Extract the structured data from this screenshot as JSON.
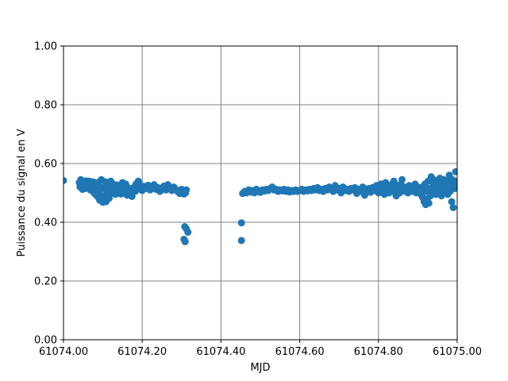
{
  "chart_data": {
    "type": "scatter",
    "title": "",
    "xlabel": "MJD",
    "ylabel": "Puissance du signal en V",
    "xlim": [
      61074.0,
      61075.0
    ],
    "ylim": [
      0.0,
      1.0
    ],
    "x_ticks": [
      61074.0,
      61074.2,
      61074.4,
      61074.6,
      61074.8,
      61075.0
    ],
    "x_tick_labels": [
      "61074.00",
      "61074.20",
      "61074.40",
      "61074.60",
      "61074.80",
      "61075.00"
    ],
    "y_ticks": [
      0.0,
      0.2,
      0.4,
      0.6,
      0.8,
      1.0
    ],
    "y_tick_labels": [
      "0.00",
      "0.20",
      "0.40",
      "0.60",
      "0.80",
      "1.00"
    ],
    "grid": true,
    "marker_color": "#1f77b4",
    "grid_color": "#808080",
    "series": [
      {
        "points": [
          [
            61074.0,
            0.542
          ],
          [
            61074.04,
            0.535
          ],
          [
            61074.042,
            0.52
          ],
          [
            61074.044,
            0.545
          ],
          [
            61074.046,
            0.528
          ],
          [
            61074.048,
            0.512
          ],
          [
            61074.05,
            0.538
          ],
          [
            61074.052,
            0.522
          ],
          [
            61074.054,
            0.53
          ],
          [
            61074.056,
            0.515
          ],
          [
            61074.058,
            0.541
          ],
          [
            61074.06,
            0.526
          ],
          [
            61074.062,
            0.533
          ],
          [
            61074.064,
            0.518
          ],
          [
            61074.066,
            0.54
          ],
          [
            61074.068,
            0.51
          ],
          [
            61074.07,
            0.531
          ],
          [
            61074.072,
            0.524
          ],
          [
            61074.074,
            0.505
          ],
          [
            61074.076,
            0.537
          ],
          [
            61074.078,
            0.52
          ],
          [
            61074.08,
            0.496
          ],
          [
            61074.082,
            0.528
          ],
          [
            61074.084,
            0.512
          ],
          [
            61074.086,
            0.488
          ],
          [
            61074.088,
            0.535
          ],
          [
            61074.09,
            0.5
          ],
          [
            61074.092,
            0.475
          ],
          [
            61074.094,
            0.52
          ],
          [
            61074.096,
            0.545
          ],
          [
            61074.098,
            0.49
          ],
          [
            61074.1,
            0.468
          ],
          [
            61074.102,
            0.515
          ],
          [
            61074.104,
            0.48
          ],
          [
            61074.106,
            0.538
          ],
          [
            61074.108,
            0.47
          ],
          [
            61074.11,
            0.502
          ],
          [
            61074.112,
            0.492
          ],
          [
            61074.114,
            0.525
          ],
          [
            61074.116,
            0.482
          ],
          [
            61074.118,
            0.51
          ],
          [
            61074.12,
            0.54
          ],
          [
            61074.122,
            0.498
          ],
          [
            61074.124,
            0.515
          ],
          [
            61074.126,
            0.53
          ],
          [
            61074.128,
            0.505
          ],
          [
            61074.13,
            0.52
          ],
          [
            61074.132,
            0.495
          ],
          [
            61074.134,
            0.512
          ],
          [
            61074.136,
            0.527
          ],
          [
            61074.138,
            0.5
          ],
          [
            61074.14,
            0.518
          ],
          [
            61074.142,
            0.508
          ],
          [
            61074.144,
            0.525
          ],
          [
            61074.146,
            0.496
          ],
          [
            61074.148,
            0.515
          ],
          [
            61074.15,
            0.535
          ],
          [
            61074.152,
            0.505
          ],
          [
            61074.154,
            0.522
          ],
          [
            61074.156,
            0.498
          ],
          [
            61074.158,
            0.53
          ],
          [
            61074.16,
            0.51
          ],
          [
            61074.162,
            0.492
          ],
          [
            61074.164,
            0.518
          ],
          [
            61074.166,
            0.505
          ],
          [
            61074.168,
            0.495
          ],
          [
            61074.17,
            0.512
          ],
          [
            61074.172,
            0.5
          ],
          [
            61074.174,
            0.488
          ],
          [
            61074.176,
            0.506
          ],
          [
            61074.178,
            0.515
          ],
          [
            61074.18,
            0.52
          ],
          [
            61074.182,
            0.505
          ],
          [
            61074.184,
            0.53
          ],
          [
            61074.186,
            0.512
          ],
          [
            61074.188,
            0.526
          ],
          [
            61074.19,
            0.54
          ],
          [
            61074.192,
            0.532
          ],
          [
            61074.194,
            0.518
          ],
          [
            61074.196,
            0.525
          ],
          [
            61074.198,
            0.51
          ],
          [
            61074.2,
            0.508
          ],
          [
            61074.205,
            0.522
          ],
          [
            61074.21,
            0.515
          ],
          [
            61074.215,
            0.526
          ],
          [
            61074.22,
            0.51
          ],
          [
            61074.225,
            0.52
          ],
          [
            61074.23,
            0.528
          ],
          [
            61074.235,
            0.512
          ],
          [
            61074.24,
            0.518
          ],
          [
            61074.245,
            0.505
          ],
          [
            61074.25,
            0.516
          ],
          [
            61074.255,
            0.523
          ],
          [
            61074.26,
            0.51
          ],
          [
            61074.265,
            0.528
          ],
          [
            61074.27,
            0.515
          ],
          [
            61074.275,
            0.508
          ],
          [
            61074.28,
            0.52
          ],
          [
            61074.285,
            0.512
          ],
          [
            61074.29,
            0.505
          ],
          [
            61074.295,
            0.498
          ],
          [
            61074.3,
            0.512
          ],
          [
            61074.302,
            0.5
          ],
          [
            61074.304,
            0.508
          ],
          [
            61074.306,
            0.496
          ],
          [
            61074.308,
            0.505
          ],
          [
            61074.31,
            0.5
          ],
          [
            61074.312,
            0.51
          ],
          [
            61074.308,
            0.385
          ],
          [
            61074.312,
            0.378
          ],
          [
            61074.316,
            0.366
          ],
          [
            61074.306,
            0.342
          ],
          [
            61074.309,
            0.334
          ],
          [
            61074.452,
            0.398
          ],
          [
            61074.452,
            0.338
          ],
          [
            61074.455,
            0.498
          ],
          [
            61074.46,
            0.505
          ],
          [
            61074.465,
            0.5
          ],
          [
            61074.47,
            0.51
          ],
          [
            61074.475,
            0.503
          ],
          [
            61074.48,
            0.508
          ],
          [
            61074.485,
            0.5
          ],
          [
            61074.49,
            0.512
          ],
          [
            61074.495,
            0.505
          ],
          [
            61074.5,
            0.502
          ],
          [
            61074.505,
            0.51
          ],
          [
            61074.51,
            0.506
          ],
          [
            61074.515,
            0.512
          ],
          [
            61074.52,
            0.508
          ],
          [
            61074.525,
            0.515
          ],
          [
            61074.53,
            0.52
          ],
          [
            61074.535,
            0.51
          ],
          [
            61074.54,
            0.512
          ],
          [
            61074.545,
            0.505
          ],
          [
            61074.55,
            0.51
          ],
          [
            61074.555,
            0.507
          ],
          [
            61074.56,
            0.512
          ],
          [
            61074.565,
            0.505
          ],
          [
            61074.57,
            0.51
          ],
          [
            61074.575,
            0.503
          ],
          [
            61074.58,
            0.508
          ],
          [
            61074.585,
            0.505
          ],
          [
            61074.59,
            0.51
          ],
          [
            61074.595,
            0.505
          ],
          [
            61074.6,
            0.508
          ],
          [
            61074.605,
            0.512
          ],
          [
            61074.61,
            0.505
          ],
          [
            61074.615,
            0.51
          ],
          [
            61074.62,
            0.507
          ],
          [
            61074.625,
            0.512
          ],
          [
            61074.63,
            0.508
          ],
          [
            61074.635,
            0.515
          ],
          [
            61074.64,
            0.51
          ],
          [
            61074.645,
            0.518
          ],
          [
            61074.65,
            0.508
          ],
          [
            61074.655,
            0.512
          ],
          [
            61074.66,
            0.505
          ],
          [
            61074.665,
            0.515
          ],
          [
            61074.67,
            0.51
          ],
          [
            61074.675,
            0.52
          ],
          [
            61074.68,
            0.512
          ],
          [
            61074.685,
            0.505
          ],
          [
            61074.69,
            0.525
          ],
          [
            61074.695,
            0.51
          ],
          [
            61074.7,
            0.515
          ],
          [
            61074.705,
            0.5
          ],
          [
            61074.71,
            0.52
          ],
          [
            61074.715,
            0.508
          ],
          [
            61074.72,
            0.512
          ],
          [
            61074.725,
            0.505
          ],
          [
            61074.73,
            0.515
          ],
          [
            61074.735,
            0.51
          ],
          [
            61074.74,
            0.518
          ],
          [
            61074.745,
            0.498
          ],
          [
            61074.75,
            0.512
          ],
          [
            61074.755,
            0.505
          ],
          [
            61074.76,
            0.52
          ],
          [
            61074.765,
            0.492
          ],
          [
            61074.77,
            0.51
          ],
          [
            61074.775,
            0.515
          ],
          [
            61074.78,
            0.502
          ],
          [
            61074.785,
            0.518
          ],
          [
            61074.79,
            0.508
          ],
          [
            61074.795,
            0.525
          ],
          [
            61074.8,
            0.5
          ],
          [
            61074.803,
            0.512
          ],
          [
            61074.806,
            0.53
          ],
          [
            61074.809,
            0.505
          ],
          [
            61074.812,
            0.518
          ],
          [
            61074.815,
            0.495
          ],
          [
            61074.818,
            0.535
          ],
          [
            61074.821,
            0.51
          ],
          [
            61074.824,
            0.522
          ],
          [
            61074.827,
            0.5
          ],
          [
            61074.83,
            0.515
          ],
          [
            61074.833,
            0.528
          ],
          [
            61074.836,
            0.505
          ],
          [
            61074.839,
            0.54
          ],
          [
            61074.842,
            0.512
          ],
          [
            61074.845,
            0.49
          ],
          [
            61074.848,
            0.525
          ],
          [
            61074.851,
            0.515
          ],
          [
            61074.854,
            0.5
          ],
          [
            61074.857,
            0.53
          ],
          [
            61074.86,
            0.545
          ],
          [
            61074.863,
            0.51
          ],
          [
            61074.866,
            0.52
          ],
          [
            61074.869,
            0.505
          ],
          [
            61074.872,
            0.515
          ],
          [
            61074.875,
            0.5
          ],
          [
            61074.878,
            0.525
          ],
          [
            61074.881,
            0.51
          ],
          [
            61074.884,
            0.518
          ],
          [
            61074.887,
            0.505
          ],
          [
            61074.89,
            0.512
          ],
          [
            61074.893,
            0.53
          ],
          [
            61074.896,
            0.5
          ],
          [
            61074.899,
            0.52
          ],
          [
            61074.902,
            0.508
          ],
          [
            61074.905,
            0.515
          ],
          [
            61074.908,
            0.495
          ],
          [
            61074.91,
            0.52
          ],
          [
            61074.912,
            0.485
          ],
          [
            61074.914,
            0.51
          ],
          [
            61074.916,
            0.47
          ],
          [
            61074.918,
            0.53
          ],
          [
            61074.92,
            0.46
          ],
          [
            61074.922,
            0.505
          ],
          [
            61074.924,
            0.48
          ],
          [
            61074.926,
            0.54
          ],
          [
            61074.928,
            0.465
          ],
          [
            61074.93,
            0.515
          ],
          [
            61074.932,
            0.49
          ],
          [
            61074.934,
            0.555
          ],
          [
            61074.936,
            0.5
          ],
          [
            61074.938,
            0.535
          ],
          [
            61074.94,
            0.545
          ],
          [
            61074.942,
            0.51
          ],
          [
            61074.944,
            0.525
          ],
          [
            61074.946,
            0.495
          ],
          [
            61074.948,
            0.54
          ],
          [
            61074.95,
            0.515
          ],
          [
            61074.952,
            0.53
          ],
          [
            61074.954,
            0.505
          ],
          [
            61074.956,
            0.55
          ],
          [
            61074.958,
            0.52
          ],
          [
            61074.96,
            0.49
          ],
          [
            61074.962,
            0.535
          ],
          [
            61074.964,
            0.51
          ],
          [
            61074.966,
            0.545
          ],
          [
            61074.968,
            0.5
          ],
          [
            61074.97,
            0.525
          ],
          [
            61074.972,
            0.515
          ],
          [
            61074.974,
            0.54
          ],
          [
            61074.976,
            0.495
          ],
          [
            61074.978,
            0.53
          ],
          [
            61074.98,
            0.56
          ],
          [
            61074.982,
            0.505
          ],
          [
            61074.984,
            0.52
          ],
          [
            61074.986,
            0.47
          ],
          [
            61074.988,
            0.545
          ],
          [
            61074.99,
            0.45
          ],
          [
            61074.992,
            0.53
          ],
          [
            61074.994,
            0.515
          ],
          [
            61074.996,
            0.572
          ],
          [
            61074.998,
            0.54
          ],
          [
            61075.0,
            0.525
          ]
        ]
      }
    ]
  }
}
